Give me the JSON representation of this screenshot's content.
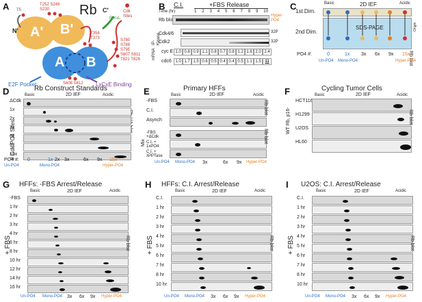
{
  "panelA": {
    "letter": "A",
    "title": "Rb",
    "domains": [
      "A'",
      "B'",
      "A",
      "B"
    ],
    "n_label": "N'",
    "c_label": "C'",
    "rxl": "R/KxL",
    "t5": "T5",
    "sites_top": "T252 S249\nS230",
    "sites_mid": "T356\nT373",
    "sites_right": "S780\nS788\nS795\nS807 S811\nT821 T826",
    "sites_bottom": "S608 S612",
    "cdk_sites": "Cdk\nSites",
    "e2f": "E2F Pocket",
    "lxcxe": "LxCxE Binding"
  },
  "panelB": {
    "letter": "B",
    "ci": "C.I.",
    "fbs": "+FBS Release",
    "time_label": "Time (hr)",
    "times": [
      "1",
      "2",
      "3",
      "4",
      "5",
      "6",
      "7",
      "8",
      "9",
      "10"
    ],
    "hyper": "Hyper-\nPO4",
    "rows": [
      "Rb blot",
      "Cdk4/6",
      "Cdk2"
    ],
    "side": "IP-\nKinase",
    "p32a": "32P",
    "p32b": "32P",
    "mrna": "mRNA",
    "cycE_label": "cyc E",
    "cdc6_label": "cdc6",
    "cycE": [
      "1.0",
      "0.8",
      "0.9",
      "1.1",
      "0.8",
      "0.7",
      "0.8",
      "1.2",
      "1.6",
      "2.0",
      "2.4"
    ],
    "cdc6": [
      "1.0",
      "1.7",
      "1.5",
      "0.6",
      "0.5",
      "0.4",
      "0.4",
      "0.5",
      "1.1",
      "1.5",
      "11"
    ]
  },
  "panelC": {
    "letter": "C",
    "dim1": "1st Dim.",
    "dim2": "2nd Dim.",
    "ief": "2D IEF",
    "basic": "Basic",
    "acidic": "Acidic",
    "sds": "SDS-PAGE",
    "origin": "Origin",
    "rbblot": "Rb blot",
    "po4": "PO4 #:",
    "nums": [
      "0",
      "1x",
      "3x",
      "6x",
      "9x",
      "15x"
    ],
    "unpo4": "Un-PO4",
    "monopo4": "Mono-PO4",
    "hyperpo4": "Hyper-PO4"
  },
  "panelD": {
    "letter": "D",
    "title": "Rb Construct Standards",
    "basic": "Basic",
    "ief": "2D IEF",
    "acidic": "Acidic",
    "rows": [
      "ΔCdk",
      "1x",
      "2x",
      "3x",
      "6x",
      "9x",
      "15x"
    ],
    "side_left": "# Cdk PO4 Sites",
    "side_right": "Rb-HA blot",
    "po4": "PO4 #:",
    "nums": [
      "0",
      "1x",
      "2x",
      "3x",
      "6x",
      "9x",
      "15x"
    ],
    "unpo4": "Un-PO4",
    "monopo4": "Mono-PO4",
    "hyperpo4": "Hyper-PO4"
  },
  "panelE": {
    "letter": "E",
    "title": "Primary HFFs",
    "basic": "Basic",
    "ief": "2D IEF",
    "acidic": "Acidic",
    "rows_top": [
      "-FBS",
      "C.I.",
      "Asynch"
    ],
    "mix": "Mix",
    "rows_bottom": [
      "-FBS\n+ΔCdk",
      "C.I. +\n1xPO4",
      "C.I. +\nλPPTase"
    ],
    "rbblot": "Rb blot",
    "nums": [
      "3x",
      "6x",
      "9x"
    ],
    "unpo4": "Un-PO4",
    "monopo4": "Mono-PO4",
    "hyperpo4": "Hyper-PO4"
  },
  "panelF": {
    "letter": "F",
    "title": "Cycling Tumor Cells",
    "basic": "Basic",
    "ief": "2D IEF",
    "acidic": "Acidic",
    "rows": [
      "HCT116",
      "H1299",
      "U2OS",
      "HL60"
    ],
    "side_left": "WT Rb, p16-",
    "rbblot": "Rb blot"
  },
  "panelG": {
    "letter": "G",
    "title": "HFFs: -FBS Arrest/Release",
    "basic": "Basic",
    "ief": "2D IEF",
    "acidic": "Acidic",
    "rows": [
      "-FBS",
      "1 hr",
      "2 hr",
      "3 hr",
      "4 hr",
      "6 hr",
      "8 hr",
      "10 hr",
      "12 hr",
      "14 hr",
      "16 hr"
    ],
    "fbs": "+ FBS",
    "rbblot": "Rb blot",
    "nums": [
      "3x",
      "6x",
      "9x"
    ],
    "unpo4": "Un-PO4",
    "monopo4": "Mono-PO4",
    "hyperpo4": "Hyper-PO4"
  },
  "panelH": {
    "letter": "H",
    "title": "HFFs: C.I. Arrest/Release",
    "basic": "Basic",
    "ief": "2D IEF",
    "acidic": "Acidic",
    "rows": [
      "C.I.",
      "1 hr",
      "2 hr",
      "3 hr",
      "4 hr",
      "5 hr",
      "6 hr",
      "7 hr",
      "8 hr",
      "10 hr"
    ],
    "fbs": "+ FBS",
    "rbblot": "Rb blot",
    "nums": [
      "3x",
      "6x",
      "9x"
    ],
    "unpo4": "Un-PO4",
    "monopo4": "Mono-PO4",
    "hyperpo4": "Hyper-PO4"
  },
  "panelI": {
    "letter": "I",
    "title": "U2OS: C.I. Arrest/Release",
    "basic": "Basic",
    "ief": "2D IEF",
    "acidic": "Acidic",
    "rows": [
      "C.I.",
      "1 hr",
      "2 hr",
      "3 hr",
      "4 hr",
      "5 hr",
      "6 hr",
      "7 hr",
      "8 hr",
      "10 hr"
    ],
    "fbs": "+ FBS",
    "rbblot": "Rb blot",
    "nums": [
      "3x",
      "6x",
      "9x"
    ],
    "unpo4": "Un-PO4",
    "monopo4": "Mono-PO4",
    "hyperpo4": "Hyper-PO4"
  },
  "colors": {
    "domain_orange": "#f0b95a",
    "domain_blue": "#3f8fdc",
    "red": "#c0392b",
    "blue": "#2c6fbf",
    "orange": "#e67e22",
    "purple": "#7b3fa0",
    "green": "#3a9a3a"
  }
}
